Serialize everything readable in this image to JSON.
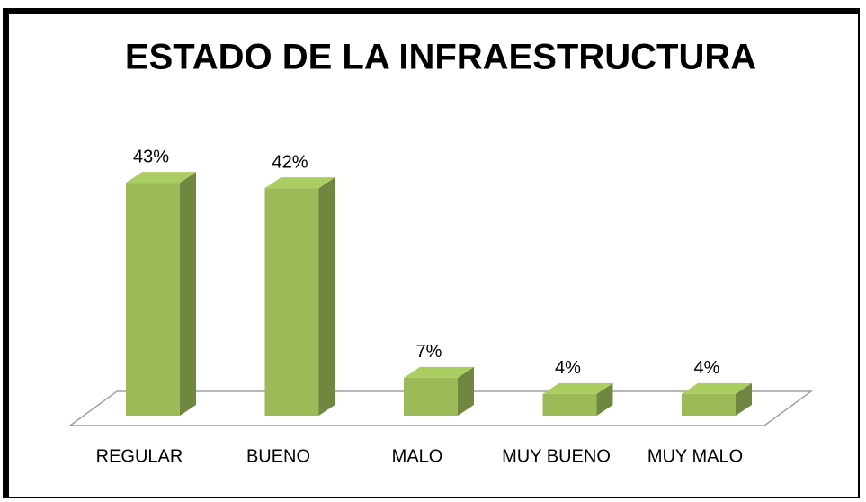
{
  "chart_data": {
    "type": "bar3d",
    "title": "ESTADO DE LA INFRAESTRUCTURA",
    "categories": [
      "REGULAR",
      "BUENO",
      "MALO",
      "MUY BUENO",
      "MUY MALO"
    ],
    "values": [
      43,
      42,
      7,
      4,
      4
    ],
    "value_labels": [
      "43%",
      "42%",
      "7%",
      "4%",
      "4%"
    ],
    "color": "#9bbb59"
  }
}
